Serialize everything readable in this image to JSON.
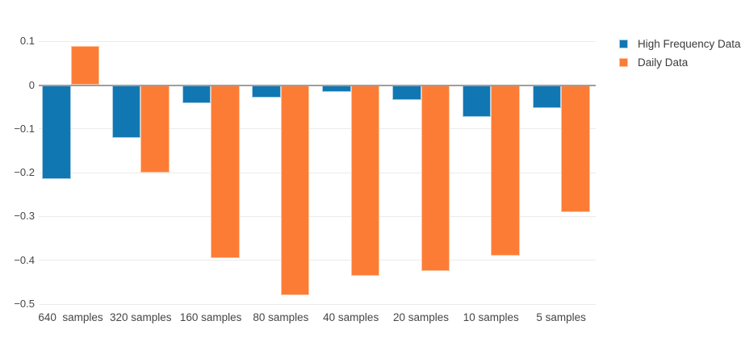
{
  "chart_data": {
    "type": "bar",
    "title": "",
    "xlabel": "",
    "ylabel": "",
    "grid": true,
    "legend_position": "top-right",
    "ylim": [
      -0.52,
      0.18
    ],
    "categories": [
      "640  samples",
      "320 samples",
      "160 samples",
      "80 samples",
      "40 samples",
      "20 samples",
      "10 samples",
      "5 samples"
    ],
    "series": [
      {
        "name": "High Frequency Data",
        "color": "#1177b3",
        "edge_color": "#a9cfe5",
        "values": [
          -0.215,
          -0.12,
          -0.041,
          -0.029,
          -0.015,
          -0.034,
          -0.073,
          -0.053
        ]
      },
      {
        "name": "Daily Data",
        "color": "#fd7c35",
        "edge_color": "#fec49c",
        "values": [
          0.09,
          -0.2,
          -0.395,
          -0.48,
          -0.435,
          -0.425,
          -0.39,
          -0.29
        ]
      }
    ],
    "yticks": [
      {
        "value": 0.1,
        "label": "0.1"
      },
      {
        "value": 0,
        "label": "0"
      },
      {
        "value": -0.1,
        "label": "−0.1"
      },
      {
        "value": -0.2,
        "label": "−0.2"
      },
      {
        "value": -0.3,
        "label": "−0.3"
      },
      {
        "value": -0.4,
        "label": "−0.4"
      },
      {
        "value": -0.5,
        "label": "−0.5"
      }
    ],
    "zero_line_color": "#9e9e9e",
    "gridline_color": "#ebebeb"
  }
}
